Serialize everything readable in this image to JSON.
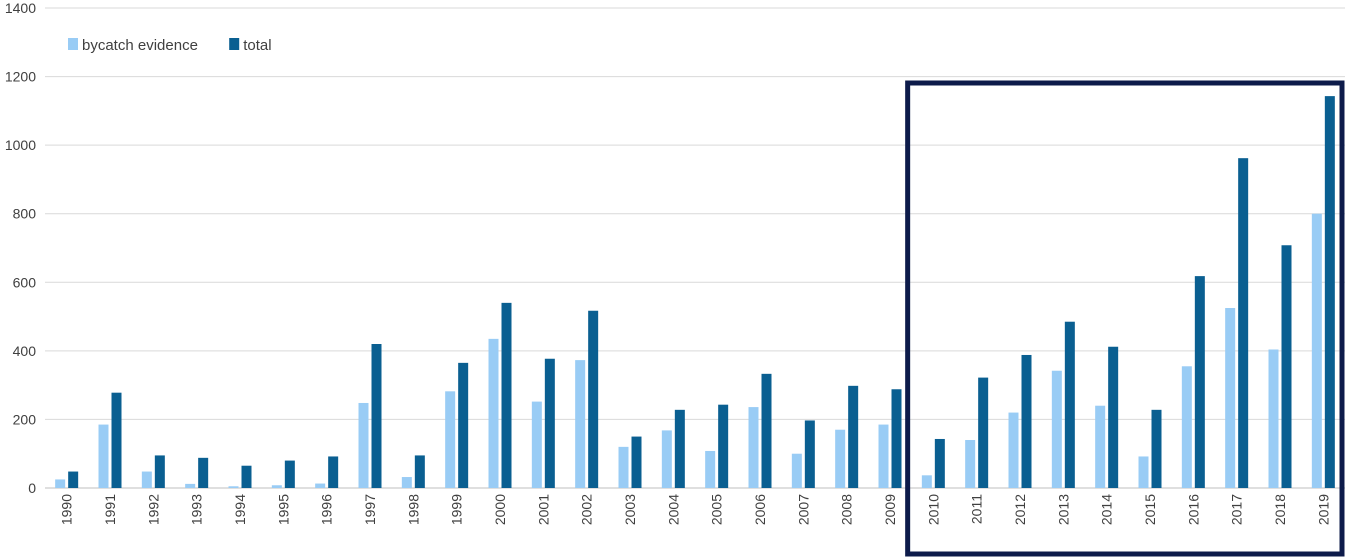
{
  "chart_data": {
    "type": "bar",
    "title": "",
    "xlabel": "",
    "ylabel": "",
    "ylim": [
      0,
      1400
    ],
    "yticks": [
      0,
      200,
      400,
      600,
      800,
      1000,
      1200,
      1400
    ],
    "grid": true,
    "legend_position": "top-left",
    "categories": [
      "1990",
      "1991",
      "1992",
      "1993",
      "1994",
      "1995",
      "1996",
      "1997",
      "1998",
      "1999",
      "2000",
      "2001",
      "2002",
      "2003",
      "2004",
      "2005",
      "2006",
      "2007",
      "2008",
      "2009",
      "2010",
      "2011",
      "2012",
      "2013",
      "2014",
      "2015",
      "2016",
      "2017",
      "2018",
      "2019"
    ],
    "series": [
      {
        "name": "bycatch evidence",
        "color": "#99ccf5",
        "values": [
          25,
          185,
          48,
          12,
          5,
          8,
          13,
          248,
          32,
          282,
          435,
          252,
          373,
          120,
          168,
          108,
          236,
          100,
          170,
          185,
          37,
          140,
          220,
          342,
          240,
          92,
          355,
          525,
          404,
          800
        ]
      },
      {
        "name": "total",
        "color": "#0a5f91",
        "values": [
          48,
          278,
          95,
          88,
          65,
          80,
          92,
          420,
          95,
          365,
          540,
          377,
          517,
          150,
          228,
          243,
          333,
          197,
          298,
          288,
          143,
          322,
          388,
          485,
          412,
          228,
          618,
          962,
          708,
          1143
        ]
      }
    ],
    "highlight": {
      "from": "2010",
      "to": "2019",
      "color": "#0d1b4a"
    }
  }
}
